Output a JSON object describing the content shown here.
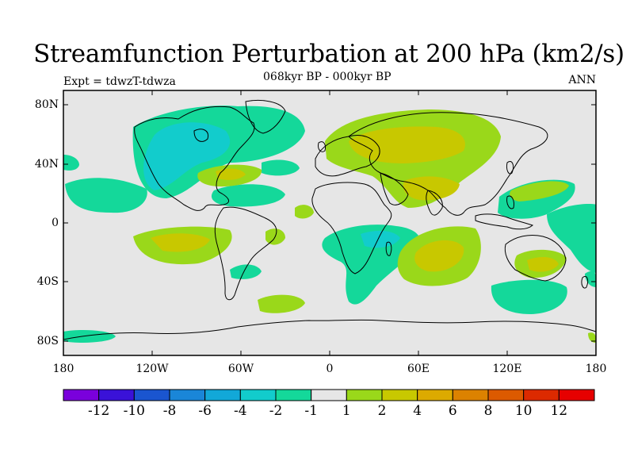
{
  "header": {
    "title": "Streamfunction Perturbation at 200 hPa (km2/s)",
    "subtitle": "068kyr BP - 000kyr BP",
    "left_label": "Expt = tdwzT-tdwza",
    "right_label": "ANN"
  },
  "map": {
    "background_color": "#e6e6e6",
    "coastline_color": "#000000",
    "lat_ticks": [
      "80N",
      "40N",
      "0",
      "40S",
      "80S"
    ],
    "lon_ticks": [
      "180",
      "120W",
      "60W",
      "0",
      "60E",
      "120E",
      "180"
    ]
  },
  "legend": {
    "colors": [
      "#7a00dc",
      "#3a12d8",
      "#1a55d0",
      "#1a86d8",
      "#12a8d8",
      "#12cccc",
      "#14d89a",
      "#e6e6e6",
      "#9ad81a",
      "#c8c800",
      "#dcaa00",
      "#dc8200",
      "#dc5a00",
      "#dc2a00",
      "#e60000"
    ],
    "labels": [
      "-12",
      "-10",
      "-8",
      "-6",
      "-4",
      "-2",
      "-1",
      "1",
      "2",
      "4",
      "6",
      "8",
      "10",
      "12"
    ]
  }
}
